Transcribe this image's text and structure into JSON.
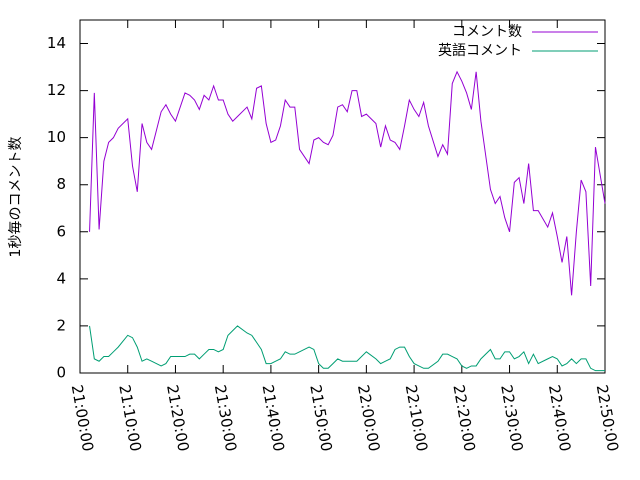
{
  "chart_data": {
    "type": "line",
    "ylabel": "1秒毎のコメント数",
    "x": [
      "21:02:00",
      "21:03:00",
      "21:04:00",
      "21:05:00",
      "21:06:00",
      "21:07:00",
      "21:08:00",
      "21:10:00",
      "21:11:00",
      "21:12:00",
      "21:13:00",
      "21:14:00",
      "21:15:00",
      "21:16:00",
      "21:17:00",
      "21:18:00",
      "21:19:00",
      "21:20:00",
      "21:22:00",
      "21:23:00",
      "21:24:00",
      "21:25:00",
      "21:26:00",
      "21:27:00",
      "21:28:00",
      "21:29:00",
      "21:30:00",
      "21:31:00",
      "21:32:00",
      "21:33:00",
      "21:35:00",
      "21:36:00",
      "21:37:00",
      "21:38:00",
      "21:39:00",
      "21:40:00",
      "21:41:00",
      "21:42:00",
      "21:43:00",
      "21:44:00",
      "21:45:00",
      "21:46:00",
      "21:48:00",
      "21:49:00",
      "21:50:00",
      "21:51:00",
      "21:52:00",
      "21:53:00",
      "21:54:00",
      "21:55:00",
      "21:56:00",
      "21:57:00",
      "21:58:00",
      "21:59:00",
      "22:00:00",
      "22:02:00",
      "22:03:00",
      "22:04:00",
      "22:05:00",
      "22:06:00",
      "22:07:00",
      "22:08:00",
      "22:09:00",
      "22:10:00",
      "22:11:00",
      "22:12:00",
      "22:13:00",
      "22:15:00",
      "22:16:00",
      "22:17:00",
      "22:18:00",
      "22:19:00",
      "22:20:00",
      "22:21:00",
      "22:22:00",
      "22:23:00",
      "22:24:00",
      "22:26:00",
      "22:27:00",
      "22:28:00",
      "22:29:00",
      "22:30:00",
      "22:31:00",
      "22:32:00",
      "22:33:00",
      "22:34:00",
      "22:35:00",
      "22:36:00",
      "22:38:00",
      "22:39:00",
      "22:40:00",
      "22:41:00",
      "22:42:00",
      "22:43:00",
      "22:44:00",
      "22:45:00",
      "22:46:00",
      "22:47:00",
      "22:48:00",
      "22:50:00"
    ],
    "series": [
      {
        "name": "コメント数",
        "color": "#9400d3",
        "values": [
          6.0,
          11.9,
          6.1,
          9.0,
          9.8,
          10.0,
          10.4,
          10.8,
          8.8,
          7.7,
          10.6,
          9.8,
          9.5,
          10.3,
          11.1,
          11.4,
          11.0,
          10.7,
          11.9,
          11.8,
          11.6,
          11.2,
          11.8,
          11.6,
          12.2,
          11.6,
          11.6,
          11.0,
          10.7,
          10.9,
          11.3,
          10.8,
          12.1,
          12.2,
          10.6,
          9.8,
          9.9,
          10.5,
          11.6,
          11.3,
          11.3,
          9.5,
          8.9,
          9.9,
          10.0,
          9.8,
          9.7,
          10.1,
          11.3,
          11.4,
          11.1,
          12.0,
          12.0,
          10.9,
          11.0,
          10.6,
          9.6,
          10.5,
          9.9,
          9.8,
          9.5,
          10.5,
          11.6,
          11.2,
          10.9,
          11.5,
          10.5,
          9.2,
          9.7,
          9.3,
          12.3,
          12.8,
          12.4,
          11.9,
          11.2,
          12.8,
          10.7,
          7.8,
          7.2,
          7.5,
          6.6,
          6.0,
          8.1,
          8.3,
          7.2,
          8.9,
          6.9,
          6.9,
          6.2,
          6.8,
          5.8,
          4.7,
          5.8,
          3.3,
          6.0,
          8.2,
          7.7,
          3.7,
          9.6,
          7.2
        ]
      },
      {
        "name": "英語コメント",
        "color": "#009e73",
        "values": [
          2.0,
          0.6,
          0.5,
          0.7,
          0.7,
          0.9,
          1.1,
          1.6,
          1.5,
          1.1,
          0.5,
          0.6,
          0.5,
          0.4,
          0.3,
          0.4,
          0.7,
          0.7,
          0.7,
          0.8,
          0.8,
          0.6,
          0.8,
          1.0,
          1.0,
          0.9,
          1.0,
          1.6,
          1.8,
          2.0,
          1.7,
          1.6,
          1.3,
          1.0,
          0.4,
          0.4,
          0.5,
          0.6,
          0.9,
          0.8,
          0.8,
          0.9,
          1.1,
          1.0,
          0.4,
          0.2,
          0.2,
          0.4,
          0.6,
          0.5,
          0.5,
          0.5,
          0.5,
          0.7,
          0.9,
          0.6,
          0.4,
          0.5,
          0.6,
          1.0,
          1.1,
          1.1,
          0.7,
          0.4,
          0.3,
          0.2,
          0.2,
          0.5,
          0.8,
          0.8,
          0.7,
          0.6,
          0.3,
          0.2,
          0.3,
          0.3,
          0.6,
          1.0,
          0.6,
          0.6,
          0.9,
          0.9,
          0.6,
          0.7,
          0.9,
          0.4,
          0.8,
          0.4,
          0.6,
          0.7,
          0.6,
          0.3,
          0.4,
          0.6,
          0.4,
          0.6,
          0.6,
          0.2,
          0.1,
          0.1
        ]
      }
    ],
    "xlim": [
      "21:00:00",
      "22:50:00"
    ],
    "xticks": [
      "21:00:00",
      "21:10:00",
      "21:20:00",
      "21:30:00",
      "21:40:00",
      "21:50:00",
      "22:00:00",
      "22:10:00",
      "22:20:00",
      "22:30:00",
      "22:40:00",
      "22:50:00"
    ],
    "ylim": [
      0,
      15
    ],
    "yticks": [
      0,
      2,
      4,
      6,
      8,
      10,
      12,
      14
    ],
    "legend": "upper right"
  }
}
